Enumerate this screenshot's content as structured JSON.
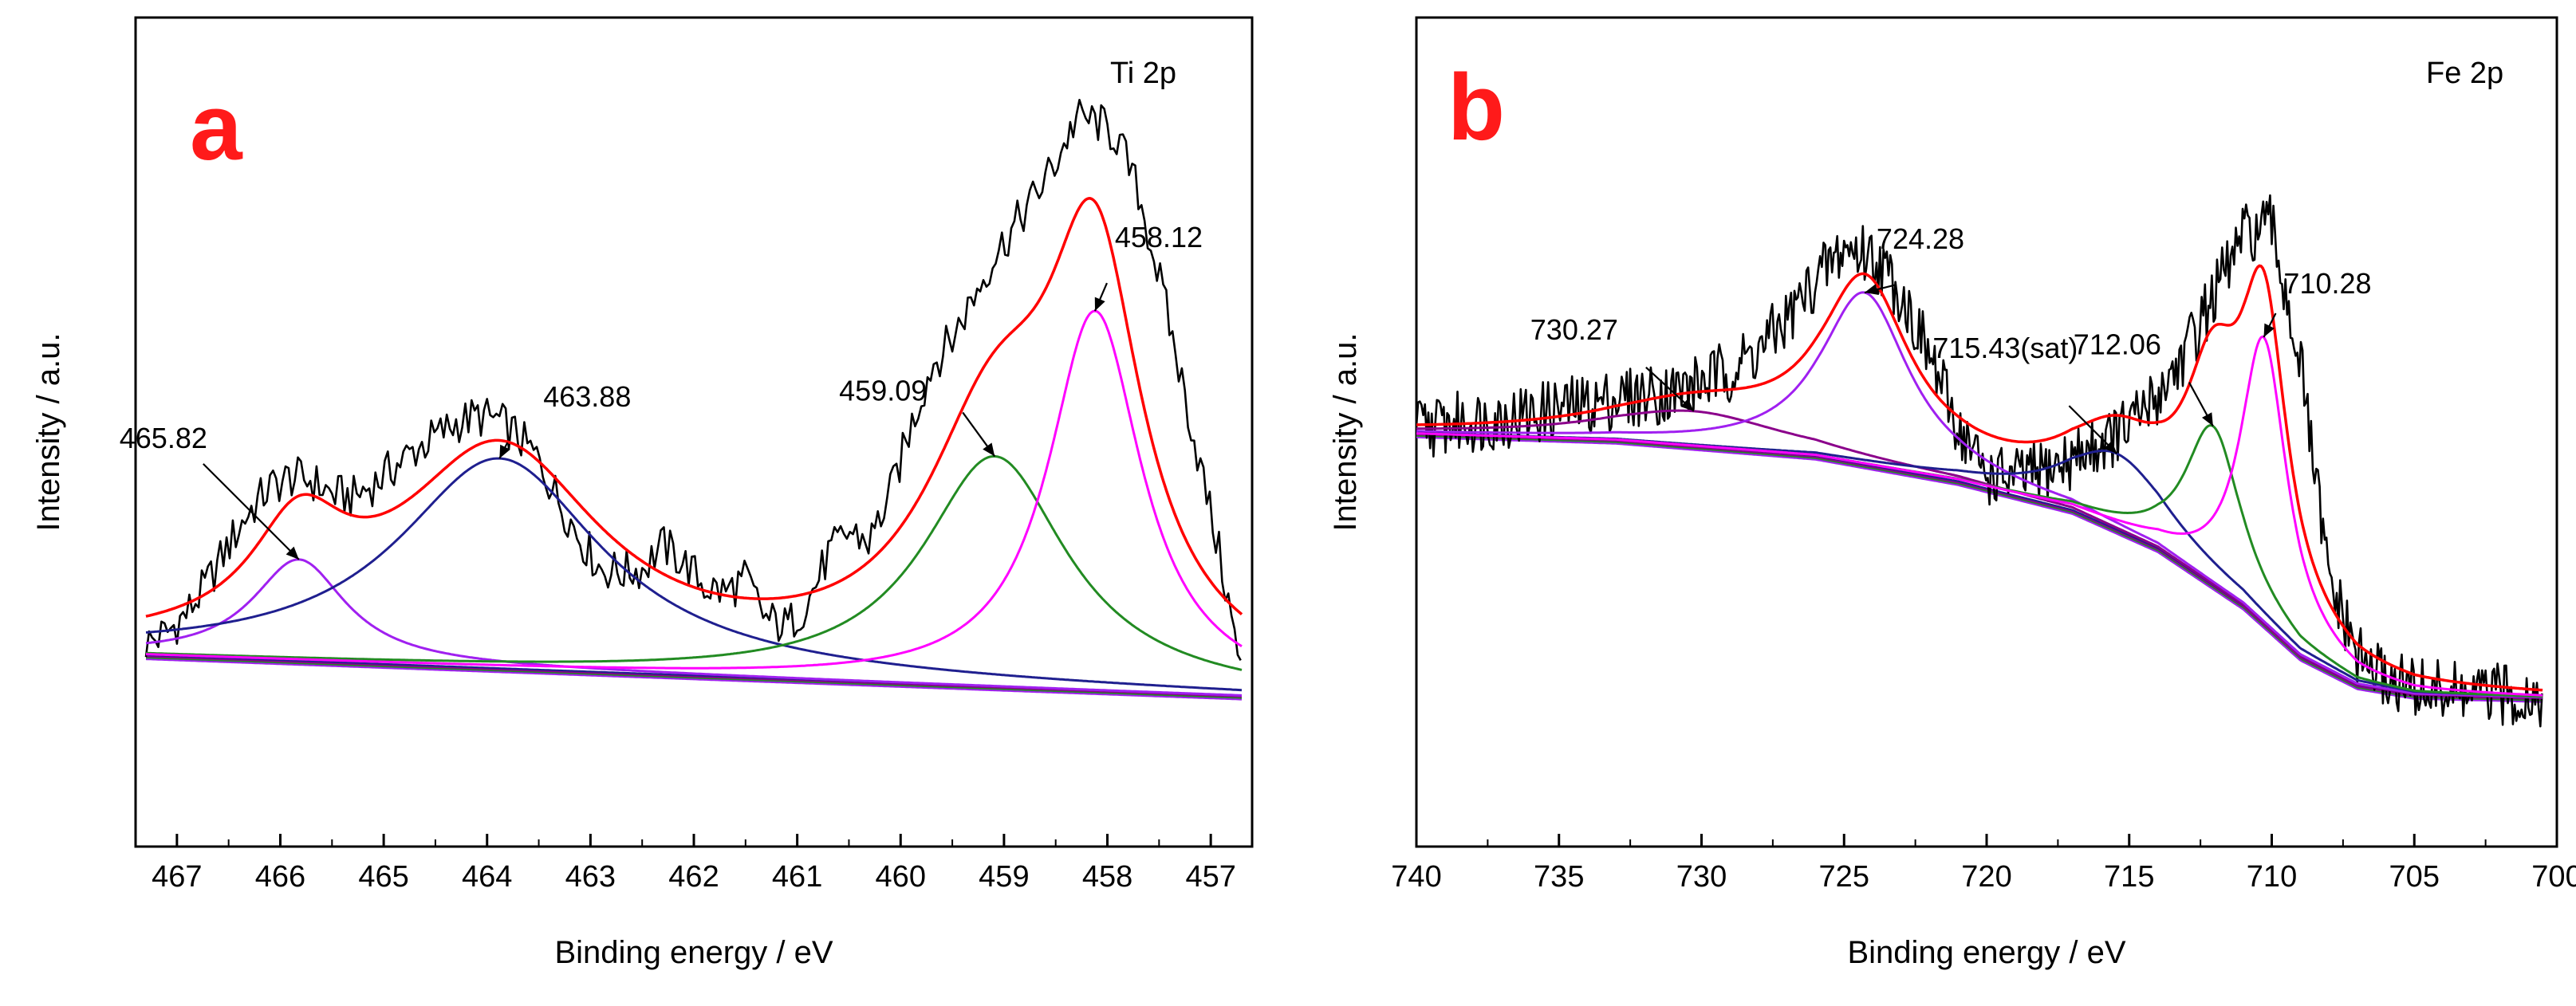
{
  "chart_data": [
    {
      "type": "line",
      "panel_letter": "a",
      "title": "Ti 2p",
      "xlabel": "Binding energy / eV",
      "ylabel": "Intensity / a.u.",
      "xlim": [
        467.4,
        456.6
      ],
      "ylim": [
        0,
        100
      ],
      "x_reversed": true,
      "xticks": [
        467,
        466,
        465,
        464,
        463,
        462,
        461,
        460,
        459,
        458,
        457
      ],
      "xtick_labels": [
        "467",
        "466",
        "465",
        "464",
        "463",
        "462",
        "461",
        "460",
        "459",
        "458",
        "457"
      ],
      "background": {
        "points": [
          [
            467.3,
            16.2
          ],
          [
            456.6,
            10.2
          ]
        ]
      },
      "peaks": [
        {
          "name": "peak-465.82",
          "center": 465.82,
          "height": 15,
          "width": 0.55,
          "color": "#a020f0"
        },
        {
          "name": "peak-463.88",
          "center": 463.88,
          "height": 31,
          "width": 1.2,
          "color": "#1f1f8f"
        },
        {
          "name": "peak-459.09",
          "center": 459.09,
          "height": 34,
          "width": 0.85,
          "color": "#228b22"
        },
        {
          "name": "peak-458.12",
          "center": 458.12,
          "height": 56,
          "width": 0.55,
          "color": "#ff00ff"
        }
      ],
      "envelope_color": "#ff0000",
      "raw_data": {
        "x": [
          467.3,
          467.1,
          466.9,
          466.7,
          466.5,
          466.3,
          466.1,
          465.9,
          465.7,
          465.5,
          465.3,
          465.1,
          464.9,
          464.7,
          464.5,
          464.3,
          464.1,
          463.9,
          463.7,
          463.5,
          463.3,
          463.1,
          462.9,
          462.7,
          462.5,
          462.3,
          462.1,
          461.9,
          461.7,
          461.5,
          461.3,
          461.1,
          460.9,
          460.7,
          460.5,
          460.3,
          460.1,
          459.9,
          459.7,
          459.5,
          459.3,
          459.1,
          458.9,
          458.7,
          458.5,
          458.3,
          458.1,
          457.9,
          457.7,
          457.5,
          457.3,
          457.1,
          456.9,
          456.7
        ],
        "y": [
          18.0,
          19.5,
          22.5,
          27.0,
          32.5,
          37.5,
          41.0,
          42.5,
          42.0,
          40.0,
          39.5,
          41.5,
          44.0,
          46.5,
          48.5,
          50.5,
          51.5,
          51.0,
          48.5,
          45.0,
          39.0,
          33.5,
          29.0,
          28.5,
          29.0,
          32.5,
          30.0,
          26.5,
          25.5,
          27.5,
          21.5,
          20.5,
          24.0,
          31.0,
          34.5,
          33.0,
          40.0,
          50.0,
          59.0,
          63.0,
          69.0,
          75.0,
          79.5,
          84.0,
          89.0,
          95.5,
          95.0,
          92.5,
          84.5,
          72.0,
          58.0,
          44.0,
          30.0,
          13.0
        ],
        "color": "#000000"
      },
      "annotations": [
        {
          "label": "465.82",
          "x": 465.82
        },
        {
          "label": "463.88",
          "x": 463.88
        },
        {
          "label": "459.09",
          "x": 459.09
        },
        {
          "label": "458.12",
          "x": 458.12
        }
      ]
    },
    {
      "type": "line",
      "panel_letter": "b",
      "title": "Fe 2p",
      "xlabel": "Binding energy / eV",
      "ylabel": "Intensity / a.u.",
      "xlim": [
        740,
        700
      ],
      "ylim": [
        0,
        100
      ],
      "x_reversed": true,
      "xticks": [
        740,
        735,
        730,
        725,
        720,
        715,
        710,
        705,
        700
      ],
      "xtick_labels": [
        "740",
        "735",
        "730",
        "725",
        "720",
        "715",
        "710",
        "705",
        "700"
      ],
      "background": {
        "points": [
          [
            740,
            57
          ],
          [
            733,
            56
          ],
          [
            726,
            53.5
          ],
          [
            721,
            49.5
          ],
          [
            717,
            45
          ],
          [
            714,
            39
          ],
          [
            711,
            30
          ],
          [
            709,
            22
          ],
          [
            707,
            17.5
          ],
          [
            705,
            16
          ],
          [
            700.5,
            15.5
          ]
        ]
      },
      "peaks": [
        {
          "name": "peak-730.27",
          "center": 730.27,
          "height": 5.5,
          "width": 4.0,
          "color": "#8b008b"
        },
        {
          "name": "peak-724.28",
          "center": 724.28,
          "height": 27,
          "width": 1.9,
          "color": "#a020f0"
        },
        {
          "name": "peak-715.43",
          "center": 715.43,
          "height": 12,
          "width": 2.3,
          "color": "#1f1f8f"
        },
        {
          "name": "peak-712.06",
          "center": 712.06,
          "height": 25,
          "width": 1.2,
          "color": "#228b22"
        },
        {
          "name": "peak-710.28",
          "center": 710.28,
          "height": 45,
          "width": 1.0,
          "color": "#ff00ff"
        }
      ],
      "envelope_color": "#ff0000",
      "raw_data": {
        "x": [
          740,
          739,
          738,
          737,
          736,
          735,
          734,
          733,
          732,
          731,
          730,
          729,
          728,
          727,
          726,
          725,
          724,
          723,
          722,
          721,
          720,
          719,
          718,
          717,
          716,
          715,
          714,
          713,
          712,
          711,
          710,
          709,
          708,
          707,
          706,
          705,
          704,
          703,
          702,
          701,
          700.5
        ],
        "y": [
          58,
          58.5,
          59,
          59.5,
          60,
          61,
          61.5,
          62.5,
          63,
          63.5,
          65,
          67,
          70,
          75,
          81,
          86,
          85,
          79,
          69,
          58,
          50.5,
          50,
          51,
          53,
          55.5,
          58,
          63,
          70,
          79,
          88,
          89.5,
          68,
          34,
          22,
          18.5,
          17,
          16.5,
          16,
          16,
          16,
          16
        ],
        "color": "#000000"
      },
      "annotations": [
        {
          "label": "730.27",
          "x": 730.27
        },
        {
          "label": "724.28",
          "x": 724.28
        },
        {
          "label": "715.43(sat)",
          "x": 715.43
        },
        {
          "label": "712.06",
          "x": 712.06
        },
        {
          "label": "710.28",
          "x": 710.28
        }
      ]
    }
  ]
}
